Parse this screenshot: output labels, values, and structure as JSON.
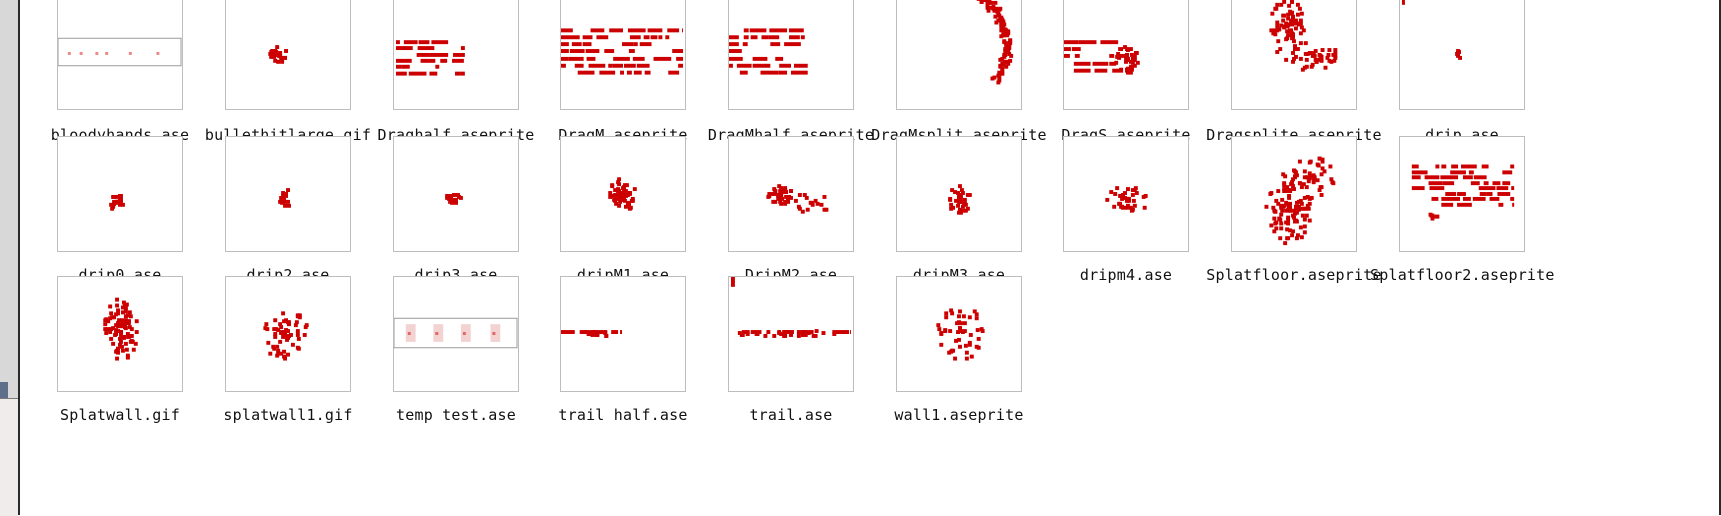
{
  "accent_color": "#cc0000",
  "files": [
    {
      "name": "bloodyhands.ase",
      "icon": "sprite-thumbnail-icon"
    },
    {
      "name": "bullethitlarge.gif",
      "icon": "sprite-thumbnail-icon"
    },
    {
      "name": "Draghalf.aseprite",
      "icon": "sprite-thumbnail-icon"
    },
    {
      "name": "DragM.aseprite",
      "icon": "sprite-thumbnail-icon"
    },
    {
      "name": "DragMhalf.aseprite",
      "icon": "sprite-thumbnail-icon"
    },
    {
      "name": "DragMsplit.aseprite",
      "icon": "sprite-thumbnail-icon"
    },
    {
      "name": "DragS.aseprite",
      "icon": "sprite-thumbnail-icon"
    },
    {
      "name": "Dragsplite.aseprite",
      "icon": "sprite-thumbnail-icon"
    },
    {
      "name": "drip.ase",
      "icon": "sprite-thumbnail-icon"
    },
    {
      "name": "drip0.ase",
      "icon": "sprite-thumbnail-icon"
    },
    {
      "name": "drip2.ase",
      "icon": "sprite-thumbnail-icon"
    },
    {
      "name": "drip3.ase",
      "icon": "sprite-thumbnail-icon"
    },
    {
      "name": "dripM1.ase",
      "icon": "sprite-thumbnail-icon"
    },
    {
      "name": "DripM2.ase",
      "icon": "sprite-thumbnail-icon"
    },
    {
      "name": "dripM3.ase",
      "icon": "sprite-thumbnail-icon"
    },
    {
      "name": "dripm4.ase",
      "icon": "sprite-thumbnail-icon"
    },
    {
      "name": "Splatfloor.aseprite",
      "icon": "sprite-thumbnail-icon"
    },
    {
      "name": "Splatfloor2.aseprite",
      "icon": "sprite-thumbnail-icon"
    },
    {
      "name": "Splatwall.gif",
      "icon": "sprite-thumbnail-icon"
    },
    {
      "name": "splatwall1.gif",
      "icon": "sprite-thumbnail-icon"
    },
    {
      "name": "temp test.ase",
      "icon": "sprite-thumbnail-icon"
    },
    {
      "name": "trail half.ase",
      "icon": "sprite-thumbnail-icon"
    },
    {
      "name": "trail.ase",
      "icon": "sprite-thumbnail-icon"
    },
    {
      "name": "wall1.aseprite",
      "icon": "sprite-thumbnail-icon"
    }
  ]
}
